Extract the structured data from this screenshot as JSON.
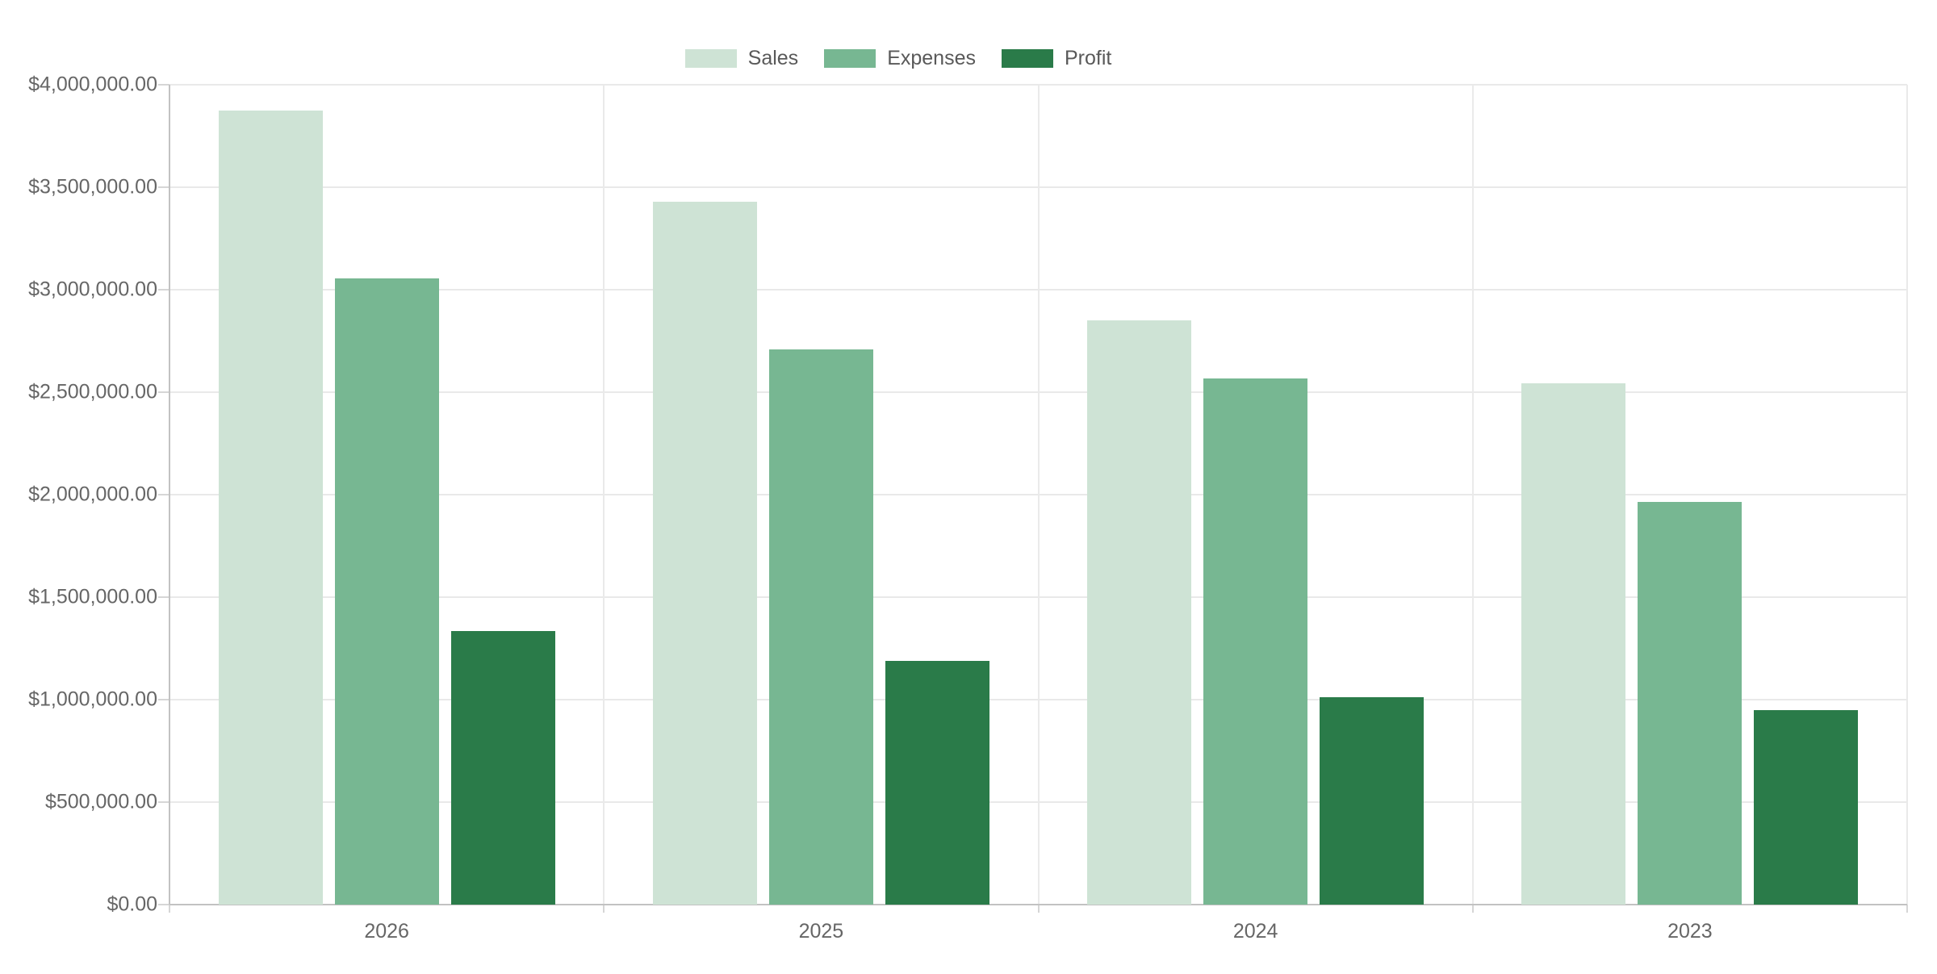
{
  "chart_data": {
    "type": "bar",
    "title": "",
    "categories": [
      "2026",
      "2025",
      "2024",
      "2023"
    ],
    "series": [
      {
        "name": "Sales",
        "color": "#cee3d5",
        "values": [
          3875000,
          3430000,
          2850000,
          2545000
        ]
      },
      {
        "name": "Expenses",
        "color": "#77b792",
        "values": [
          3055000,
          2710000,
          2565000,
          1965000
        ]
      },
      {
        "name": "Profit",
        "color": "#2a7b49",
        "values": [
          1335000,
          1190000,
          1010000,
          950000
        ]
      }
    ],
    "ylim": [
      0,
      4000000
    ],
    "ytick_step": 500000,
    "ytick_labels_top_to_bottom": [
      "$4,000,000.00",
      "$3,500,000.00",
      "$3,000,000.00",
      "$2,500,000.00",
      "$2,000,000.00",
      "$1,500,000.00",
      "$1,000,000.00",
      "$500,000.00",
      "$0.00"
    ],
    "legend_position": "top",
    "grid": true
  },
  "colors": {
    "grid": "#e9e9e9",
    "axis": "#c2c2c2",
    "tick": "#d6d6d6",
    "label_text": "#666666",
    "legend_text": "#595959",
    "background": "#ffffff"
  }
}
